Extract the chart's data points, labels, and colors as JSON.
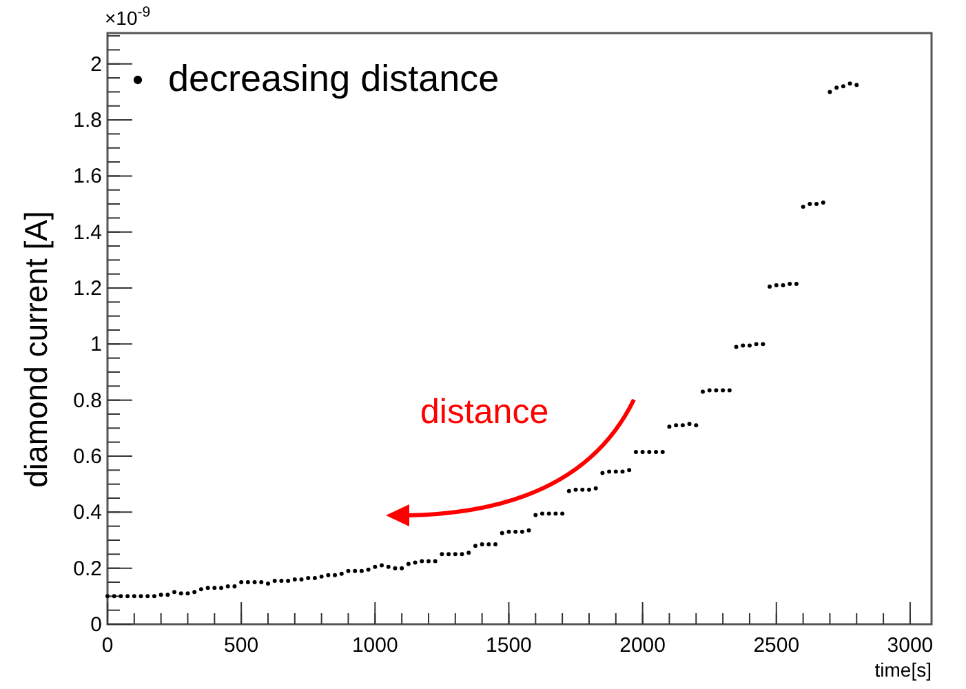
{
  "chart_data": {
    "type": "scatter",
    "xlabel": "time[s]",
    "ylabel": "diamond current [A]",
    "annotations": [
      "×10$^{-9}$",
      "distance"
    ],
    "xlim": [
      0,
      3080
    ],
    "ylim": [
      0,
      2.11
    ],
    "xticks": [
      0,
      500,
      1000,
      1500,
      2000,
      2500,
      3000
    ],
    "yticks": [
      0,
      0.2,
      0.4,
      0.6,
      0.8,
      1,
      1.2,
      1.4,
      1.6,
      1.8,
      2
    ],
    "grid": false,
    "legend": "top left",
    "marker": "circle",
    "series": [
      {
        "name": "decreasing distance",
        "color": "#000000",
        "x": [
          0,
          25,
          50,
          75,
          100,
          125,
          150,
          175,
          200,
          225,
          250,
          275,
          300,
          325,
          350,
          375,
          400,
          425,
          450,
          475,
          500,
          525,
          550,
          575,
          600,
          625,
          650,
          675,
          700,
          725,
          750,
          775,
          800,
          825,
          850,
          875,
          900,
          925,
          950,
          975,
          1000,
          1025,
          1050,
          1075,
          1100,
          1125,
          1150,
          1175,
          1200,
          1225,
          1250,
          1275,
          1300,
          1325,
          1350,
          1375,
          1400,
          1425,
          1450,
          1475,
          1500,
          1525,
          1550,
          1575,
          1600,
          1625,
          1650,
          1675,
          1700,
          1725,
          1750,
          1775,
          1800,
          1825,
          1850,
          1875,
          1900,
          1925,
          1950,
          1975,
          2000,
          2025,
          2050,
          2075,
          2100,
          2125,
          2150,
          2175,
          2200,
          2225,
          2250,
          2275,
          2300,
          2325,
          2350,
          2375,
          2400,
          2425,
          2450,
          2475,
          2500,
          2525,
          2550,
          2575,
          2600,
          2625,
          2650,
          2675,
          2700,
          2725,
          2750,
          2775,
          2800
        ],
        "values": [
          0.1,
          0.1,
          0.1,
          0.1,
          0.1,
          0.1,
          0.1,
          0.1,
          0.105,
          0.105,
          0.115,
          0.11,
          0.11,
          0.115,
          0.125,
          0.13,
          0.13,
          0.13,
          0.135,
          0.135,
          0.15,
          0.15,
          0.15,
          0.15,
          0.145,
          0.155,
          0.155,
          0.155,
          0.16,
          0.16,
          0.165,
          0.165,
          0.17,
          0.175,
          0.175,
          0.18,
          0.19,
          0.19,
          0.19,
          0.195,
          0.205,
          0.21,
          0.205,
          0.2,
          0.2,
          0.215,
          0.22,
          0.225,
          0.225,
          0.225,
          0.25,
          0.25,
          0.25,
          0.25,
          0.255,
          0.28,
          0.285,
          0.285,
          0.285,
          0.325,
          0.33,
          0.33,
          0.33,
          0.335,
          0.39,
          0.395,
          0.395,
          0.395,
          0.395,
          0.475,
          0.48,
          0.48,
          0.48,
          0.485,
          0.54,
          0.545,
          0.545,
          0.545,
          0.55,
          0.615,
          0.615,
          0.615,
          0.615,
          0.615,
          0.705,
          0.71,
          0.71,
          0.715,
          0.71,
          0.83,
          0.835,
          0.835,
          0.835,
          0.835,
          0.99,
          0.995,
          0.995,
          1.0,
          1.0,
          1.205,
          1.21,
          1.21,
          1.215,
          1.215,
          1.49,
          1.5,
          1.5,
          1.505,
          1.9,
          1.915,
          1.92,
          1.93,
          1.925
        ]
      }
    ]
  }
}
